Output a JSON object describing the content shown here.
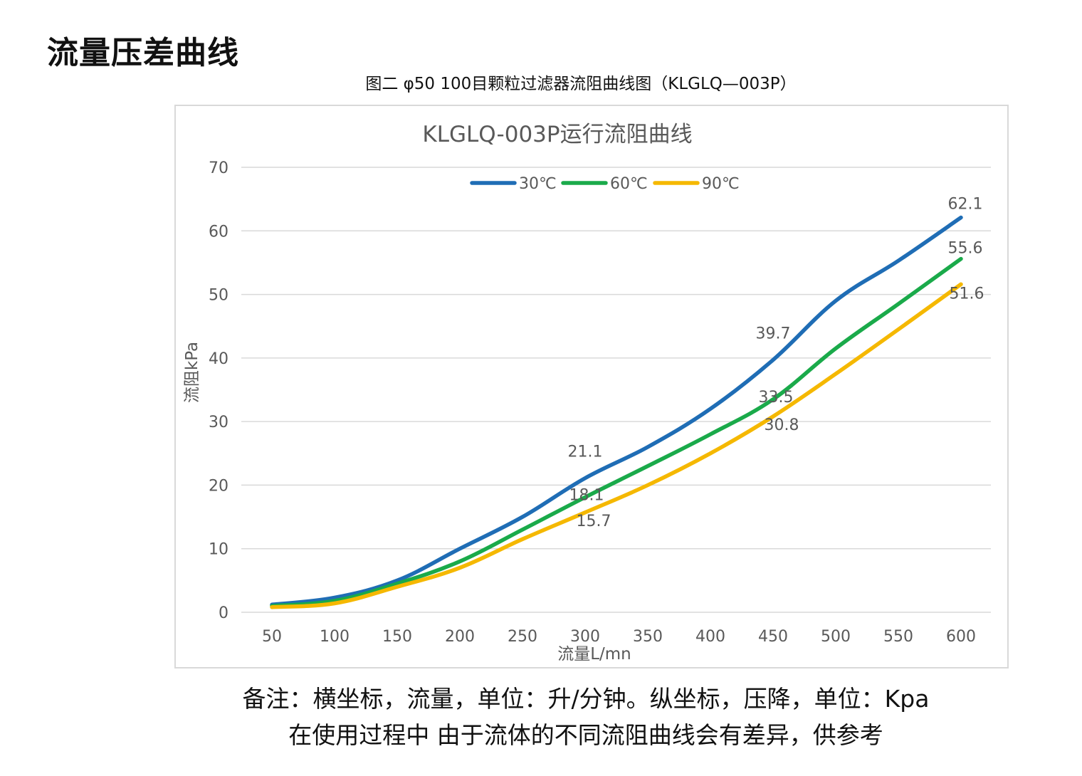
{
  "page": {
    "title": "流量压差曲线",
    "caption": "图二 φ50 100目颗粒过滤器流阻曲线图（KLGLQ—003P）",
    "note_line1": "备注：横坐标，流量，单位：升/分钟。纵坐标，压降，单位：Kpa",
    "note_line2": "在使用过程中 由于流体的不同流阻曲线会有差异，供参考"
  },
  "chart_data": {
    "type": "line",
    "title": "KLGLQ-003P运行流阻曲线",
    "xlabel": "流量L/mn",
    "ylabel": "流阻kPa",
    "categories": [
      50,
      100,
      150,
      200,
      250,
      300,
      350,
      400,
      450,
      500,
      550,
      600
    ],
    "ylim": [
      0,
      70
    ],
    "yticks": [
      0,
      10,
      20,
      30,
      40,
      50,
      60,
      70
    ],
    "grid": "horizontal",
    "legend_position": "top-center",
    "series": [
      {
        "name": "30℃",
        "color": "#1f6db5",
        "values": [
          1.2,
          2.3,
          5.0,
          10.0,
          15.0,
          21.1,
          26.0,
          32.0,
          39.7,
          49.0,
          55.3,
          62.1
        ],
        "labels": {
          "5": "21.1",
          "8": "39.7",
          "11": "62.1"
        }
      },
      {
        "name": "60℃",
        "color": "#1aaa4a",
        "values": [
          1.0,
          1.8,
          4.5,
          8.0,
          13.0,
          18.1,
          23.0,
          28.0,
          33.5,
          41.5,
          48.5,
          55.6
        ],
        "labels": {
          "5": "18.1",
          "8": "33.5",
          "11": "55.6"
        }
      },
      {
        "name": "90℃",
        "color": "#f5b800",
        "values": [
          0.8,
          1.4,
          4.0,
          7.0,
          11.5,
          15.7,
          20.0,
          25.0,
          30.8,
          37.5,
          44.5,
          51.6
        ],
        "labels": {
          "5": "15.7",
          "8": "30.8",
          "11": "51.6"
        }
      }
    ]
  }
}
